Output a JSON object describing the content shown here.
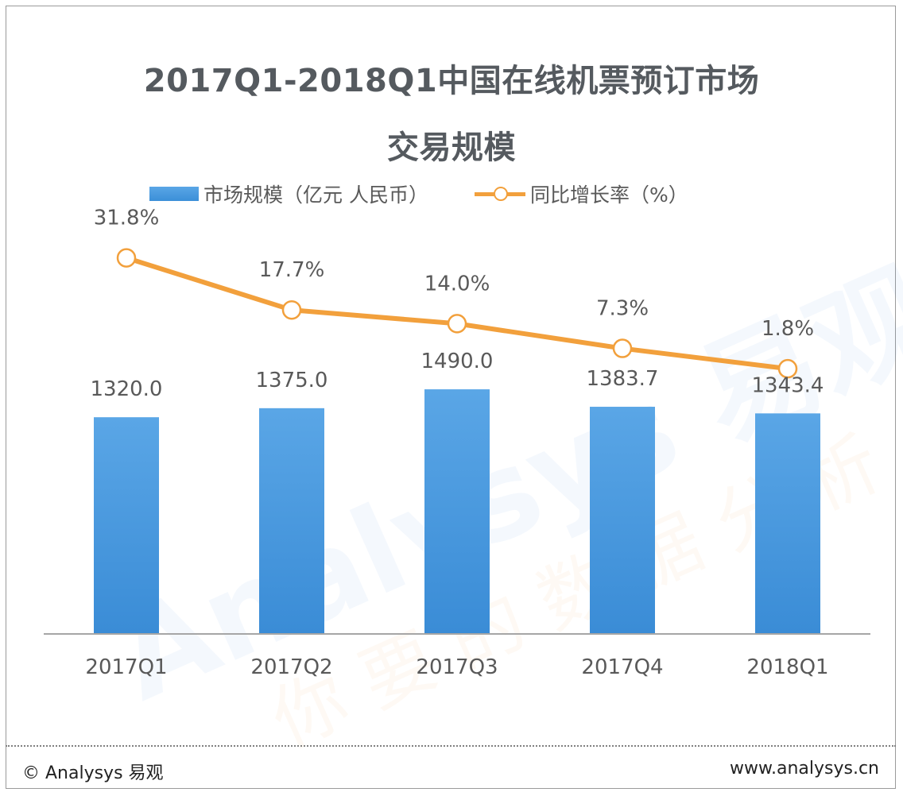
{
  "title_line1": "2017Q1-2018Q1中国在线机票预订市场",
  "title_line2": "交易规模",
  "footer": {
    "copyright": "© Analysys 易观",
    "url": "www.analysys.cn"
  },
  "watermark": {
    "brand": "Analysys 易观",
    "slogan": "你要的数据分析"
  },
  "colors": {
    "bar_top": "#5aa6e6",
    "bar_bottom": "#3a8cd6",
    "line": "#f2a03c",
    "axis": "#a6a6a6",
    "text": "#595959"
  },
  "chart_data": {
    "type": "bar",
    "categories": [
      "2017Q1",
      "2017Q2",
      "2017Q3",
      "2017Q4",
      "2018Q1"
    ],
    "series": [
      {
        "name": "市场规模（亿元 人民币）",
        "type": "bar",
        "values": [
          1320.0,
          1375.0,
          1490.0,
          1383.7,
          1343.4
        ],
        "labels": [
          "1320.0",
          "1375.0",
          "1490.0",
          "1383.7",
          "1343.4"
        ]
      },
      {
        "name": "同比增长率（%）",
        "type": "line",
        "values": [
          31.8,
          17.7,
          14.0,
          7.3,
          1.8
        ],
        "labels": [
          "31.8%",
          "17.7%",
          "14.0%",
          "7.3%",
          "1.8%"
        ]
      }
    ],
    "bar_axis_range": [
      0,
      2700
    ],
    "line_axis_range": [
      -70,
      50
    ],
    "legend_position": "top",
    "grid": false
  }
}
